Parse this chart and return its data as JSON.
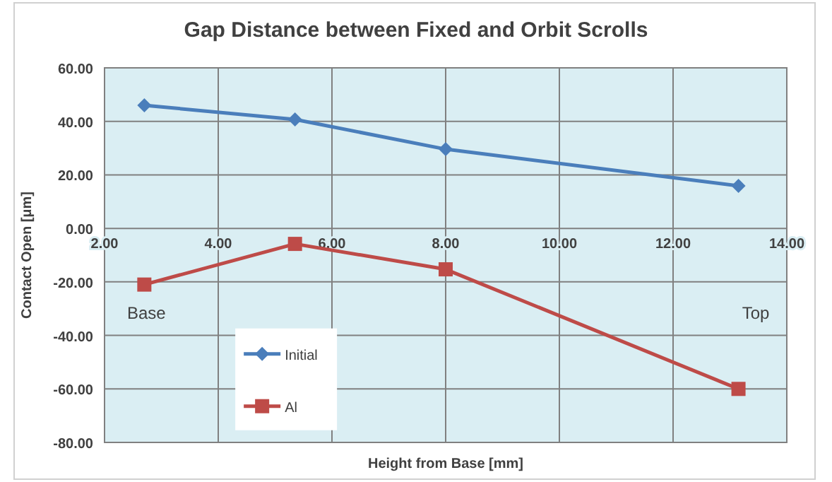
{
  "chart_data": {
    "type": "line",
    "title": "Gap Distance between Fixed and Orbit Scrolls",
    "xlabel": "Height  from Base [mm]",
    "ylabel": "Contact Open [μm]",
    "series": [
      {
        "name": "Initial",
        "color": "#4a7ebb",
        "marker": "diamond",
        "x": [
          2.7,
          5.35,
          8.0,
          13.15
        ],
        "values": [
          46,
          40.7,
          29.6,
          15.9
        ]
      },
      {
        "name": "Al",
        "color": "#be4b48",
        "marker": "square",
        "x": [
          2.7,
          5.35,
          8.0,
          13.15
        ],
        "values": [
          -21,
          -5.8,
          -15.3,
          -60
        ]
      }
    ],
    "xlim": [
      2,
      14
    ],
    "xticks": [
      {
        "value": 2,
        "label": "2.00"
      },
      {
        "value": 4,
        "label": "4.00"
      },
      {
        "value": 6,
        "label": "6.00"
      },
      {
        "value": 8,
        "label": "8.00"
      },
      {
        "value": 10,
        "label": "10.00"
      },
      {
        "value": 12,
        "label": "12.00"
      },
      {
        "value": 14,
        "label": "14.00"
      }
    ],
    "ylim": [
      -80,
      60
    ],
    "yticks": [
      {
        "value": -80,
        "label": "-80.00"
      },
      {
        "value": -60,
        "label": "-60.00"
      },
      {
        "value": -40,
        "label": "-40.00"
      },
      {
        "value": -20,
        "label": "-20.00"
      },
      {
        "value": 0,
        "label": "0.00"
      },
      {
        "value": 20,
        "label": "20.00"
      },
      {
        "value": 40,
        "label": "40.00"
      },
      {
        "value": 60,
        "label": "60.00"
      }
    ],
    "grid": true,
    "legend": "bottom left",
    "annotations": [
      "Base",
      "Top"
    ]
  }
}
